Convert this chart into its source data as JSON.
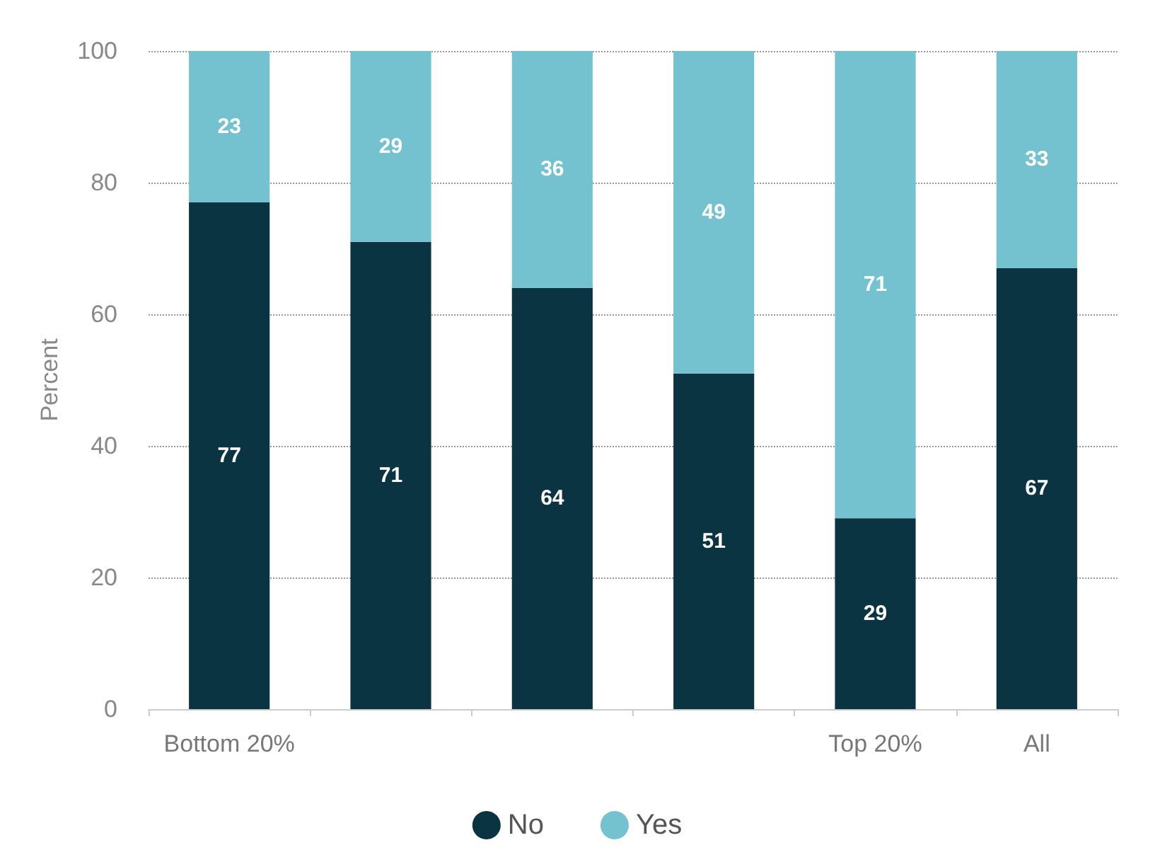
{
  "chart_data": {
    "type": "bar",
    "ylabel": "Percent",
    "stacked": true,
    "data_labels": true,
    "grid": "y",
    "legend": "bottom",
    "categories": [
      "Bottom 20%",
      null,
      null,
      null,
      "Top 20%",
      "All"
    ],
    "series": [
      {
        "name": "No",
        "color": "#0b3442",
        "values": [
          77,
          71,
          64,
          51,
          29,
          67
        ]
      },
      {
        "name": "Yes",
        "color": "#74c2cf",
        "values": [
          23,
          29,
          36,
          49,
          71,
          33
        ]
      }
    ],
    "ylim": [
      0,
      100
    ],
    "yticks": [
      0,
      20,
      40,
      60,
      80,
      100
    ]
  }
}
